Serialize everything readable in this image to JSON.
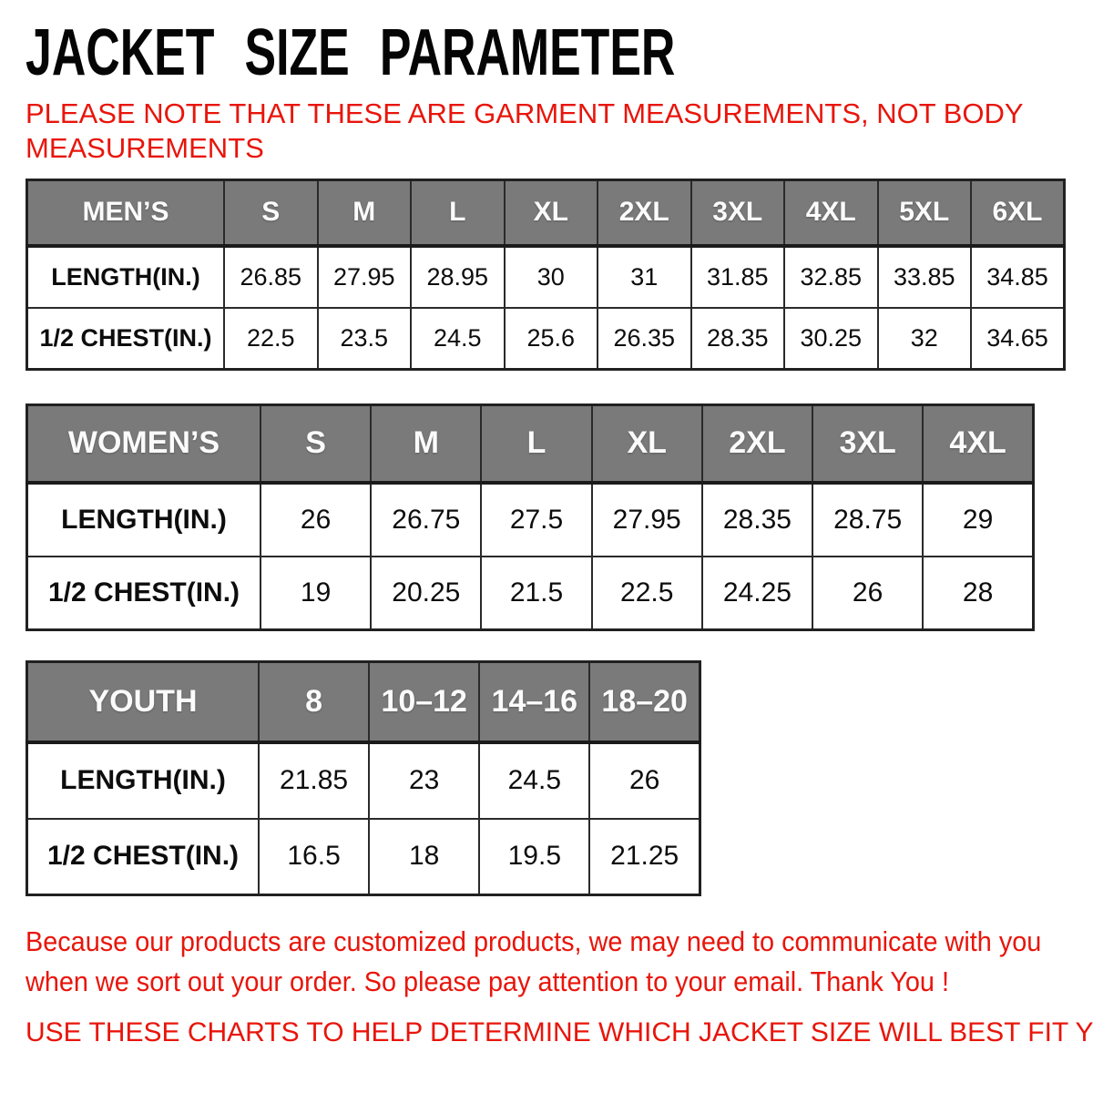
{
  "title": "JACKET SIZE PARAMETER",
  "note_lines": [
    "PLEASE NOTE THAT THESE ARE GARMENT MEASUREMENTS, NOT BODY",
    "MEASUREMENTS"
  ],
  "colors": {
    "accent_red": "#e8150b",
    "header_gray": "#7a7a7a",
    "border_dark": "#212121",
    "title_black": "#050505"
  },
  "tables": [
    {
      "id": "mens",
      "header": [
        "MEN’S",
        "S",
        "M",
        "L",
        "XL",
        "2XL",
        "3XL",
        "4XL",
        "5XL",
        "6XL"
      ],
      "rows": [
        {
          "label": "LENGTH(IN.)",
          "values": [
            "26.85",
            "27.95",
            "28.95",
            "30",
            "31",
            "31.85",
            "32.85",
            "33.85",
            "34.85"
          ]
        },
        {
          "label": "1/2 CHEST(IN.)",
          "values": [
            "22.5",
            "23.5",
            "24.5",
            "25.6",
            "26.35",
            "28.35",
            "30.25",
            "32",
            "34.65"
          ]
        }
      ]
    },
    {
      "id": "womens",
      "header": [
        "WOMEN’S",
        "S",
        "M",
        "L",
        "XL",
        "2XL",
        "3XL",
        "4XL"
      ],
      "rows": [
        {
          "label": "LENGTH(IN.)",
          "values": [
            "26",
            "26.75",
            "27.5",
            "27.95",
            "28.35",
            "28.75",
            "29"
          ]
        },
        {
          "label": "1/2 CHEST(IN.)",
          "values": [
            "19",
            "20.25",
            "21.5",
            "22.5",
            "24.25",
            "26",
            "28"
          ]
        }
      ]
    },
    {
      "id": "youth",
      "header": [
        "YOUTH",
        "8",
        "10–12",
        "14–16",
        "18–20"
      ],
      "rows": [
        {
          "label": "LENGTH(IN.)",
          "values": [
            "21.85",
            "23",
            "24.5",
            "26"
          ]
        },
        {
          "label": "1/2 CHEST(IN.)",
          "values": [
            "16.5",
            "18",
            "19.5",
            "21.25"
          ]
        }
      ]
    }
  ],
  "footer": {
    "paragraph_lines": [
      "Because our products are customized products, we may need to communicate with you",
      "when we sort out your order. So please pay attention to your email. Thank You !"
    ],
    "cta": "USE THESE CHARTS TO HELP DETERMINE WHICH JACKET SIZE WILL BEST FIT YOU."
  }
}
